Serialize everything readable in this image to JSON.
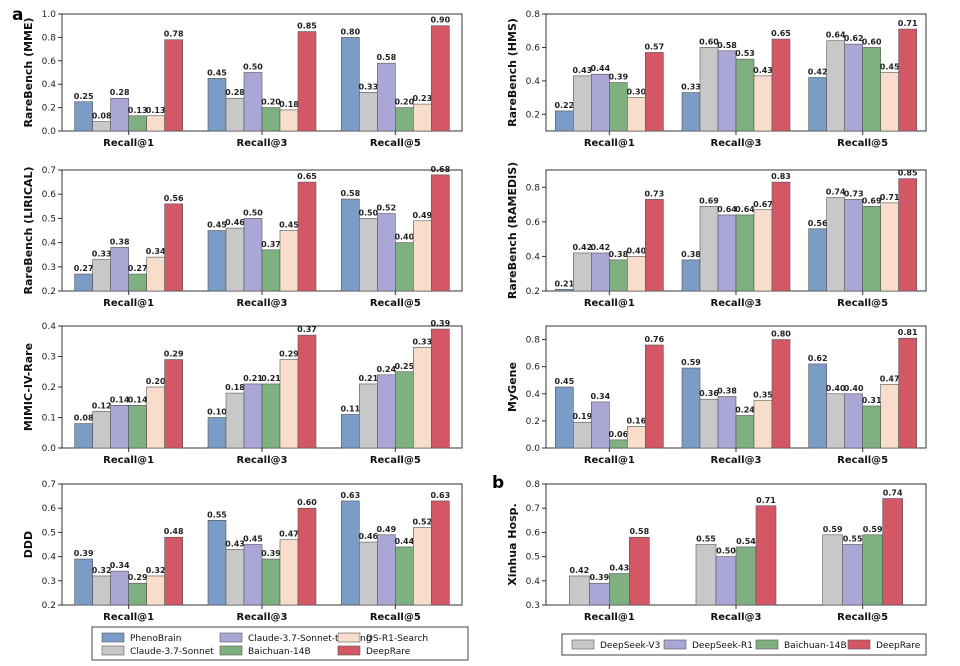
{
  "panel_labels": {
    "a": "a",
    "b": "b"
  },
  "colors": {
    "PhenoBrain": "#7a9cc6",
    "Claude-3.7-Sonnet": "#c8c8c8",
    "Claude-3.7-Sonnet-thinking": "#aaa6d6",
    "Baichuan-14B": "#7fb07f",
    "DS-R1-Search": "#f8dccc",
    "DeepRare": "#d45766",
    "DeepSeek-V3": "#c8c8c8",
    "DeepSeek-R1": "#aaa6d6"
  },
  "legend_a": {
    "entries": [
      "PhenoBrain",
      "Claude-3.7-Sonnet-thinking",
      "DS-R1-Search",
      "Claude-3.7-Sonnet",
      "Baichuan-14B",
      "DeepRare"
    ]
  },
  "legend_b": {
    "entries": [
      "DeepSeek-V3",
      "DeepSeek-R1",
      "Baichuan-14B",
      "DeepRare"
    ]
  },
  "chart_data": [
    {
      "type": "bar",
      "ylabel": "RareBench (MME)",
      "categories": [
        "Recall@1",
        "Recall@3",
        "Recall@5"
      ],
      "ylim": [
        0,
        1.0
      ],
      "yticks": [
        0.0,
        0.2,
        0.4,
        0.6,
        0.8,
        1.0
      ],
      "series": [
        {
          "name": "PhenoBrain",
          "values": [
            0.25,
            0.45,
            0.8
          ]
        },
        {
          "name": "Claude-3.7-Sonnet",
          "values": [
            0.08,
            0.28,
            0.33
          ]
        },
        {
          "name": "Claude-3.7-Sonnet-thinking",
          "values": [
            0.28,
            0.5,
            0.58
          ]
        },
        {
          "name": "Baichuan-14B",
          "values": [
            0.13,
            0.2,
            0.2
          ]
        },
        {
          "name": "DS-R1-Search",
          "values": [
            0.13,
            0.18,
            0.23
          ]
        },
        {
          "name": "DeepRare",
          "values": [
            0.78,
            0.85,
            0.9
          ]
        }
      ]
    },
    {
      "type": "bar",
      "ylabel": "RareBench (HMS)",
      "categories": [
        "Recall@1",
        "Recall@3",
        "Recall@5"
      ],
      "ylim": [
        0.1,
        0.8
      ],
      "yticks": [
        0.2,
        0.4,
        0.6,
        0.8
      ],
      "series": [
        {
          "name": "PhenoBrain",
          "values": [
            0.22,
            0.33,
            0.42
          ]
        },
        {
          "name": "Claude-3.7-Sonnet",
          "values": [
            0.43,
            0.6,
            0.64
          ]
        },
        {
          "name": "Claude-3.7-Sonnet-thinking",
          "values": [
            0.44,
            0.58,
            0.62
          ]
        },
        {
          "name": "Baichuan-14B",
          "values": [
            0.39,
            0.53,
            0.6
          ]
        },
        {
          "name": "DS-R1-Search",
          "values": [
            0.3,
            0.43,
            0.45
          ]
        },
        {
          "name": "DeepRare",
          "values": [
            0.57,
            0.65,
            0.71
          ]
        }
      ]
    },
    {
      "type": "bar",
      "ylabel": "RareBench (LIRICAL)",
      "categories": [
        "Recall@1",
        "Recall@3",
        "Recall@5"
      ],
      "ylim": [
        0.2,
        0.7
      ],
      "yticks": [
        0.2,
        0.3,
        0.4,
        0.5,
        0.6,
        0.7
      ],
      "series": [
        {
          "name": "PhenoBrain",
          "values": [
            0.27,
            0.45,
            0.58
          ]
        },
        {
          "name": "Claude-3.7-Sonnet",
          "values": [
            0.33,
            0.46,
            0.5
          ]
        },
        {
          "name": "Claude-3.7-Sonnet-thinking",
          "values": [
            0.38,
            0.5,
            0.52
          ]
        },
        {
          "name": "Baichuan-14B",
          "values": [
            0.27,
            0.37,
            0.4
          ]
        },
        {
          "name": "DS-R1-Search",
          "values": [
            0.34,
            0.45,
            0.49
          ]
        },
        {
          "name": "DeepRare",
          "values": [
            0.56,
            0.65,
            0.68
          ]
        }
      ]
    },
    {
      "type": "bar",
      "ylabel": "RareBench (RAMEDIS)",
      "categories": [
        "Recall@1",
        "Recall@3",
        "Recall@5"
      ],
      "ylim": [
        0.2,
        0.9
      ],
      "yticks": [
        0.2,
        0.4,
        0.6,
        0.8
      ],
      "series": [
        {
          "name": "PhenoBrain",
          "values": [
            0.21,
            0.38,
            0.56
          ]
        },
        {
          "name": "Claude-3.7-Sonnet",
          "values": [
            0.42,
            0.69,
            0.74
          ]
        },
        {
          "name": "Claude-3.7-Sonnet-thinking",
          "values": [
            0.42,
            0.64,
            0.73
          ]
        },
        {
          "name": "Baichuan-14B",
          "values": [
            0.38,
            0.64,
            0.69
          ]
        },
        {
          "name": "DS-R1-Search",
          "values": [
            0.4,
            0.67,
            0.71
          ]
        },
        {
          "name": "DeepRare",
          "values": [
            0.73,
            0.83,
            0.85
          ]
        }
      ]
    },
    {
      "type": "bar",
      "ylabel": "MIMIC-IV-Rare",
      "categories": [
        "Recall@1",
        "Recall@3",
        "Recall@5"
      ],
      "ylim": [
        0,
        0.4
      ],
      "yticks": [
        0.0,
        0.1,
        0.2,
        0.3,
        0.4
      ],
      "series": [
        {
          "name": "PhenoBrain",
          "values": [
            0.08,
            0.1,
            0.11
          ]
        },
        {
          "name": "Claude-3.7-Sonnet",
          "values": [
            0.12,
            0.18,
            0.21
          ]
        },
        {
          "name": "Claude-3.7-Sonnet-thinking",
          "values": [
            0.14,
            0.21,
            0.24
          ]
        },
        {
          "name": "Baichuan-14B",
          "values": [
            0.14,
            0.21,
            0.25
          ]
        },
        {
          "name": "DS-R1-Search",
          "values": [
            0.2,
            0.29,
            0.33
          ]
        },
        {
          "name": "DeepRare",
          "values": [
            0.29,
            0.37,
            0.39
          ]
        }
      ]
    },
    {
      "type": "bar",
      "ylabel": "MyGene",
      "categories": [
        "Recall@1",
        "Recall@3",
        "Recall@5"
      ],
      "ylim": [
        0,
        0.9
      ],
      "yticks": [
        0.0,
        0.2,
        0.4,
        0.6,
        0.8
      ],
      "series": [
        {
          "name": "PhenoBrain",
          "values": [
            0.45,
            0.59,
            0.62
          ]
        },
        {
          "name": "Claude-3.7-Sonnet",
          "values": [
            0.19,
            0.36,
            0.4
          ]
        },
        {
          "name": "Claude-3.7-Sonnet-thinking",
          "values": [
            0.34,
            0.38,
            0.4
          ]
        },
        {
          "name": "Baichuan-14B",
          "values": [
            0.06,
            0.24,
            0.31
          ]
        },
        {
          "name": "DS-R1-Search",
          "values": [
            0.16,
            0.35,
            0.47
          ]
        },
        {
          "name": "DeepRare",
          "values": [
            0.76,
            0.8,
            0.81
          ]
        }
      ]
    },
    {
      "type": "bar",
      "ylabel": "DDD",
      "categories": [
        "Recall@1",
        "Recall@3",
        "Recall@5"
      ],
      "ylim": [
        0.2,
        0.7
      ],
      "yticks": [
        0.2,
        0.3,
        0.4,
        0.5,
        0.6,
        0.7
      ],
      "series": [
        {
          "name": "PhenoBrain",
          "values": [
            0.39,
            0.55,
            0.63
          ]
        },
        {
          "name": "Claude-3.7-Sonnet",
          "values": [
            0.32,
            0.43,
            0.46
          ]
        },
        {
          "name": "Claude-3.7-Sonnet-thinking",
          "values": [
            0.34,
            0.45,
            0.49
          ]
        },
        {
          "name": "Baichuan-14B",
          "values": [
            0.29,
            0.39,
            0.44
          ]
        },
        {
          "name": "DS-R1-Search",
          "values": [
            0.32,
            0.47,
            0.52
          ]
        },
        {
          "name": "DeepRare",
          "values": [
            0.48,
            0.6,
            0.63
          ]
        }
      ]
    },
    {
      "type": "bar",
      "ylabel": "Xinhua Hosp.",
      "categories": [
        "Recall@1",
        "Recall@3",
        "Recall@5"
      ],
      "ylim": [
        0.3,
        0.8
      ],
      "yticks": [
        0.3,
        0.4,
        0.5,
        0.6,
        0.7,
        0.8
      ],
      "series": [
        {
          "name": "DeepSeek-V3",
          "values": [
            0.42,
            0.55,
            0.59
          ]
        },
        {
          "name": "DeepSeek-R1",
          "values": [
            0.39,
            0.5,
            0.55
          ]
        },
        {
          "name": "Baichuan-14B",
          "values": [
            0.43,
            0.54,
            0.59
          ]
        },
        {
          "name": "DeepRare",
          "values": [
            0.58,
            0.71,
            0.74
          ]
        }
      ]
    }
  ]
}
